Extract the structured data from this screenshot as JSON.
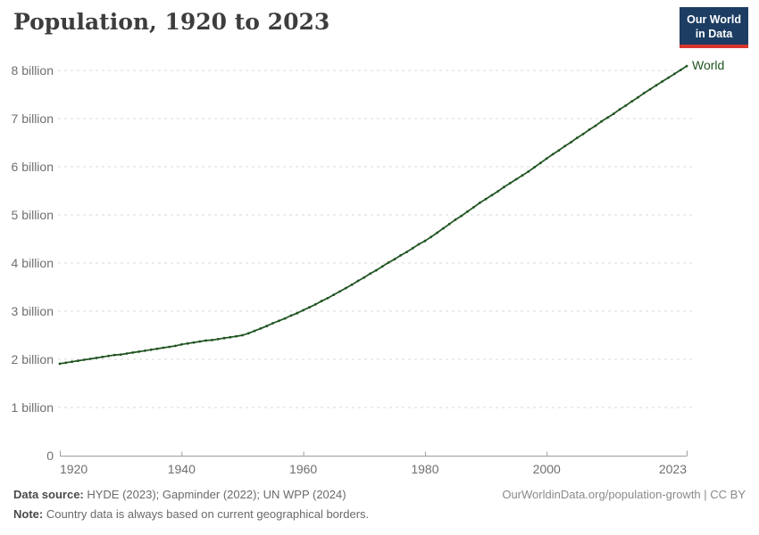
{
  "header": {
    "title": "Population, 1920 to 2023"
  },
  "logo": {
    "line1": "Our World",
    "line2": "in Data",
    "bg_color": "#1d3d63",
    "stripe_color": "#d8352f"
  },
  "chart_data": {
    "type": "line",
    "title": "Population, 1920 to 2023",
    "xlabel": "",
    "ylabel": "",
    "x_range": [
      1920,
      2023
    ],
    "y_range_billions": [
      0,
      8.5
    ],
    "grid": "horizontal dashed",
    "grid_color": "#d8d8d8",
    "axis_color": "#9d9d9d",
    "legend_position": "end-of-line label",
    "x_ticks": [
      1920,
      1940,
      1960,
      1980,
      2000,
      2023
    ],
    "y_ticks": [
      {
        "value": 0,
        "label": "0"
      },
      {
        "value": 1,
        "label": "1 billion"
      },
      {
        "value": 2,
        "label": "2 billion"
      },
      {
        "value": 3,
        "label": "3 billion"
      },
      {
        "value": 4,
        "label": "4 billion"
      },
      {
        "value": 5,
        "label": "5 billion"
      },
      {
        "value": 6,
        "label": "6 billion"
      },
      {
        "value": 7,
        "label": "7 billion"
      },
      {
        "value": 8,
        "label": "8 billion"
      }
    ],
    "series": [
      {
        "name": "World",
        "color": "#1f5420",
        "marker": "dot-every-year",
        "years": [
          1920,
          1921,
          1922,
          1923,
          1924,
          1925,
          1926,
          1927,
          1928,
          1929,
          1930,
          1931,
          1932,
          1933,
          1934,
          1935,
          1936,
          1937,
          1938,
          1939,
          1940,
          1941,
          1942,
          1943,
          1944,
          1945,
          1946,
          1947,
          1948,
          1949,
          1950,
          1951,
          1952,
          1953,
          1954,
          1955,
          1956,
          1957,
          1958,
          1959,
          1960,
          1961,
          1962,
          1963,
          1964,
          1965,
          1966,
          1967,
          1968,
          1969,
          1970,
          1971,
          1972,
          1973,
          1974,
          1975,
          1976,
          1977,
          1978,
          1979,
          1980,
          1981,
          1982,
          1983,
          1984,
          1985,
          1986,
          1987,
          1988,
          1989,
          1990,
          1991,
          1992,
          1993,
          1994,
          1995,
          1996,
          1997,
          1998,
          1999,
          2000,
          2001,
          2002,
          2003,
          2004,
          2005,
          2006,
          2007,
          2008,
          2009,
          2010,
          2011,
          2012,
          2013,
          2014,
          2015,
          2016,
          2017,
          2018,
          2019,
          2020,
          2021,
          2022,
          2023
        ],
        "values_billions": [
          1.91,
          1.93,
          1.95,
          1.97,
          1.99,
          2.01,
          2.03,
          2.05,
          2.07,
          2.09,
          2.1,
          2.12,
          2.14,
          2.16,
          2.18,
          2.2,
          2.22,
          2.24,
          2.26,
          2.28,
          2.31,
          2.33,
          2.35,
          2.37,
          2.39,
          2.4,
          2.42,
          2.44,
          2.46,
          2.48,
          2.5,
          2.54,
          2.59,
          2.64,
          2.69,
          2.75,
          2.8,
          2.85,
          2.91,
          2.96,
          3.02,
          3.08,
          3.14,
          3.21,
          3.27,
          3.34,
          3.41,
          3.48,
          3.55,
          3.63,
          3.7,
          3.78,
          3.85,
          3.93,
          4.01,
          4.08,
          4.16,
          4.23,
          4.31,
          4.39,
          4.46,
          4.54,
          4.63,
          4.72,
          4.81,
          4.9,
          4.98,
          5.07,
          5.16,
          5.25,
          5.33,
          5.41,
          5.49,
          5.58,
          5.66,
          5.74,
          5.82,
          5.9,
          5.99,
          6.08,
          6.17,
          6.26,
          6.34,
          6.43,
          6.51,
          6.6,
          6.68,
          6.77,
          6.85,
          6.94,
          7.02,
          7.1,
          7.19,
          7.27,
          7.36,
          7.44,
          7.53,
          7.61,
          7.69,
          7.77,
          7.85,
          7.93,
          8.01,
          8.09
        ]
      }
    ]
  },
  "footer": {
    "data_source_label": "Data source:",
    "data_source_text": " HYDE (2023); Gapminder (2022); UN WPP (2024)",
    "note_label": "Note:",
    "note_text": " Country data is always based on current geographical borders.",
    "link": "OurWorldinData.org/population-growth | CC BY"
  }
}
